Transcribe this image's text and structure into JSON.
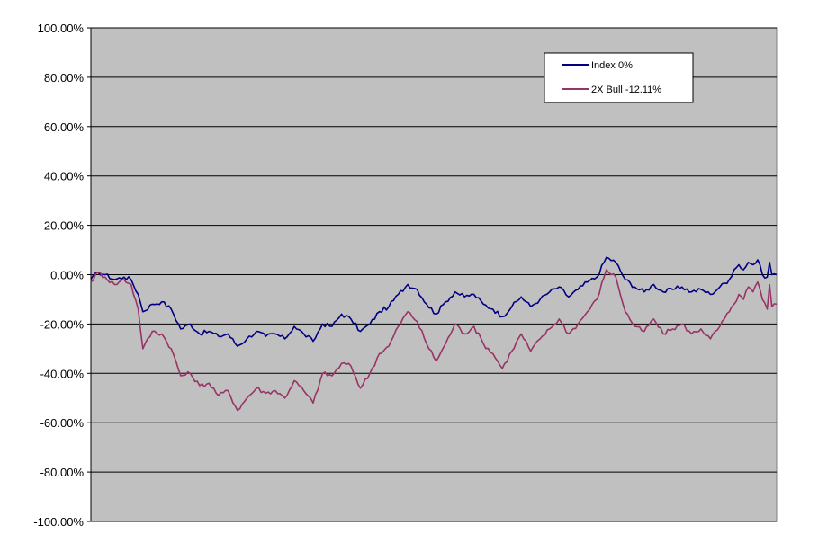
{
  "chart_data": {
    "type": "line",
    "title": "",
    "xlabel": "",
    "ylabel": "",
    "ylim": [
      -1.0,
      1.0
    ],
    "yticks": [
      1.0,
      0.8,
      0.6,
      0.4,
      0.2,
      0.0,
      -0.2,
      -0.4,
      -0.6,
      -0.8,
      -1.0
    ],
    "ytick_labels": [
      "100.00%",
      "80.00%",
      "60.00%",
      "40.00%",
      "20.00%",
      "0.00%",
      "-20.00%",
      "-40.00%",
      "-60.00%",
      "-80.00%",
      "-100.00%"
    ],
    "x_count": 280,
    "grid": "horizontal",
    "plot_background": "#c0c0c0",
    "legend_placement": "top-right",
    "series": [
      {
        "name": "Index  0%",
        "color": "#000080",
        "keypoints": [
          [
            0,
            -0.02
          ],
          [
            3,
            0.01
          ],
          [
            6,
            0.0
          ],
          [
            10,
            -0.02
          ],
          [
            14,
            -0.01
          ],
          [
            17,
            -0.02
          ],
          [
            20,
            -0.08
          ],
          [
            22,
            -0.15
          ],
          [
            26,
            -0.12
          ],
          [
            30,
            -0.11
          ],
          [
            34,
            -0.14
          ],
          [
            38,
            -0.22
          ],
          [
            42,
            -0.2
          ],
          [
            46,
            -0.24
          ],
          [
            50,
            -0.23
          ],
          [
            54,
            -0.25
          ],
          [
            58,
            -0.24
          ],
          [
            62,
            -0.29
          ],
          [
            66,
            -0.26
          ],
          [
            70,
            -0.23
          ],
          [
            74,
            -0.25
          ],
          [
            78,
            -0.24
          ],
          [
            82,
            -0.26
          ],
          [
            86,
            -0.21
          ],
          [
            90,
            -0.24
          ],
          [
            94,
            -0.27
          ],
          [
            98,
            -0.2
          ],
          [
            102,
            -0.21
          ],
          [
            106,
            -0.16
          ],
          [
            110,
            -0.18
          ],
          [
            114,
            -0.23
          ],
          [
            118,
            -0.2
          ],
          [
            122,
            -0.15
          ],
          [
            126,
            -0.13
          ],
          [
            130,
            -0.08
          ],
          [
            134,
            -0.04
          ],
          [
            138,
            -0.06
          ],
          [
            142,
            -0.12
          ],
          [
            146,
            -0.16
          ],
          [
            150,
            -0.11
          ],
          [
            154,
            -0.07
          ],
          [
            158,
            -0.09
          ],
          [
            162,
            -0.08
          ],
          [
            166,
            -0.12
          ],
          [
            170,
            -0.14
          ],
          [
            174,
            -0.17
          ],
          [
            178,
            -0.13
          ],
          [
            182,
            -0.09
          ],
          [
            186,
            -0.13
          ],
          [
            190,
            -0.1
          ],
          [
            194,
            -0.07
          ],
          [
            198,
            -0.05
          ],
          [
            202,
            -0.09
          ],
          [
            206,
            -0.06
          ],
          [
            210,
            -0.03
          ],
          [
            214,
            -0.01
          ],
          [
            218,
            0.07
          ],
          [
            222,
            0.05
          ],
          [
            226,
            -0.02
          ],
          [
            230,
            -0.05
          ],
          [
            234,
            -0.07
          ],
          [
            238,
            -0.04
          ],
          [
            242,
            -0.07
          ],
          [
            246,
            -0.06
          ],
          [
            250,
            -0.05
          ],
          [
            254,
            -0.07
          ],
          [
            258,
            -0.06
          ],
          [
            262,
            -0.08
          ],
          [
            266,
            -0.05
          ],
          [
            270,
            -0.02
          ],
          [
            272,
            0.02
          ],
          [
            274,
            0.04
          ],
          [
            276,
            0.02
          ],
          [
            278,
            0.05
          ],
          [
            280,
            0.04
          ],
          [
            282,
            0.06
          ],
          [
            284,
            0.0
          ],
          [
            286,
            -0.01
          ],
          [
            287,
            0.05
          ],
          [
            288,
            0.0
          ],
          [
            290,
            0.0
          ]
        ]
      },
      {
        "name": "2X Bull  -12.11%",
        "color": "#993366",
        "keypoints": [
          [
            0,
            -0.03
          ],
          [
            3,
            0.01
          ],
          [
            6,
            -0.01
          ],
          [
            10,
            -0.04
          ],
          [
            14,
            -0.02
          ],
          [
            17,
            -0.04
          ],
          [
            20,
            -0.14
          ],
          [
            22,
            -0.3
          ],
          [
            26,
            -0.23
          ],
          [
            30,
            -0.24
          ],
          [
            34,
            -0.3
          ],
          [
            38,
            -0.41
          ],
          [
            42,
            -0.4
          ],
          [
            46,
            -0.45
          ],
          [
            50,
            -0.44
          ],
          [
            54,
            -0.49
          ],
          [
            58,
            -0.47
          ],
          [
            62,
            -0.55
          ],
          [
            66,
            -0.5
          ],
          [
            70,
            -0.46
          ],
          [
            74,
            -0.48
          ],
          [
            78,
            -0.47
          ],
          [
            82,
            -0.5
          ],
          [
            86,
            -0.43
          ],
          [
            90,
            -0.47
          ],
          [
            94,
            -0.52
          ],
          [
            98,
            -0.4
          ],
          [
            102,
            -0.41
          ],
          [
            106,
            -0.36
          ],
          [
            110,
            -0.37
          ],
          [
            114,
            -0.46
          ],
          [
            118,
            -0.4
          ],
          [
            122,
            -0.32
          ],
          [
            126,
            -0.29
          ],
          [
            130,
            -0.21
          ],
          [
            134,
            -0.15
          ],
          [
            138,
            -0.19
          ],
          [
            142,
            -0.28
          ],
          [
            146,
            -0.35
          ],
          [
            150,
            -0.28
          ],
          [
            154,
            -0.2
          ],
          [
            158,
            -0.24
          ],
          [
            162,
            -0.21
          ],
          [
            166,
            -0.28
          ],
          [
            170,
            -0.32
          ],
          [
            174,
            -0.38
          ],
          [
            178,
            -0.31
          ],
          [
            182,
            -0.24
          ],
          [
            186,
            -0.31
          ],
          [
            190,
            -0.26
          ],
          [
            194,
            -0.22
          ],
          [
            198,
            -0.18
          ],
          [
            202,
            -0.24
          ],
          [
            206,
            -0.2
          ],
          [
            210,
            -0.15
          ],
          [
            214,
            -0.1
          ],
          [
            218,
            0.02
          ],
          [
            222,
            -0.01
          ],
          [
            226,
            -0.15
          ],
          [
            230,
            -0.21
          ],
          [
            234,
            -0.23
          ],
          [
            238,
            -0.18
          ],
          [
            242,
            -0.24
          ],
          [
            246,
            -0.22
          ],
          [
            250,
            -0.2
          ],
          [
            254,
            -0.24
          ],
          [
            258,
            -0.22
          ],
          [
            262,
            -0.26
          ],
          [
            266,
            -0.21
          ],
          [
            270,
            -0.15
          ],
          [
            272,
            -0.12
          ],
          [
            274,
            -0.08
          ],
          [
            276,
            -0.1
          ],
          [
            278,
            -0.05
          ],
          [
            280,
            -0.07
          ],
          [
            282,
            -0.03
          ],
          [
            284,
            -0.1
          ],
          [
            286,
            -0.14
          ],
          [
            287,
            -0.04
          ],
          [
            288,
            -0.13
          ],
          [
            290,
            -0.12
          ]
        ]
      }
    ]
  }
}
